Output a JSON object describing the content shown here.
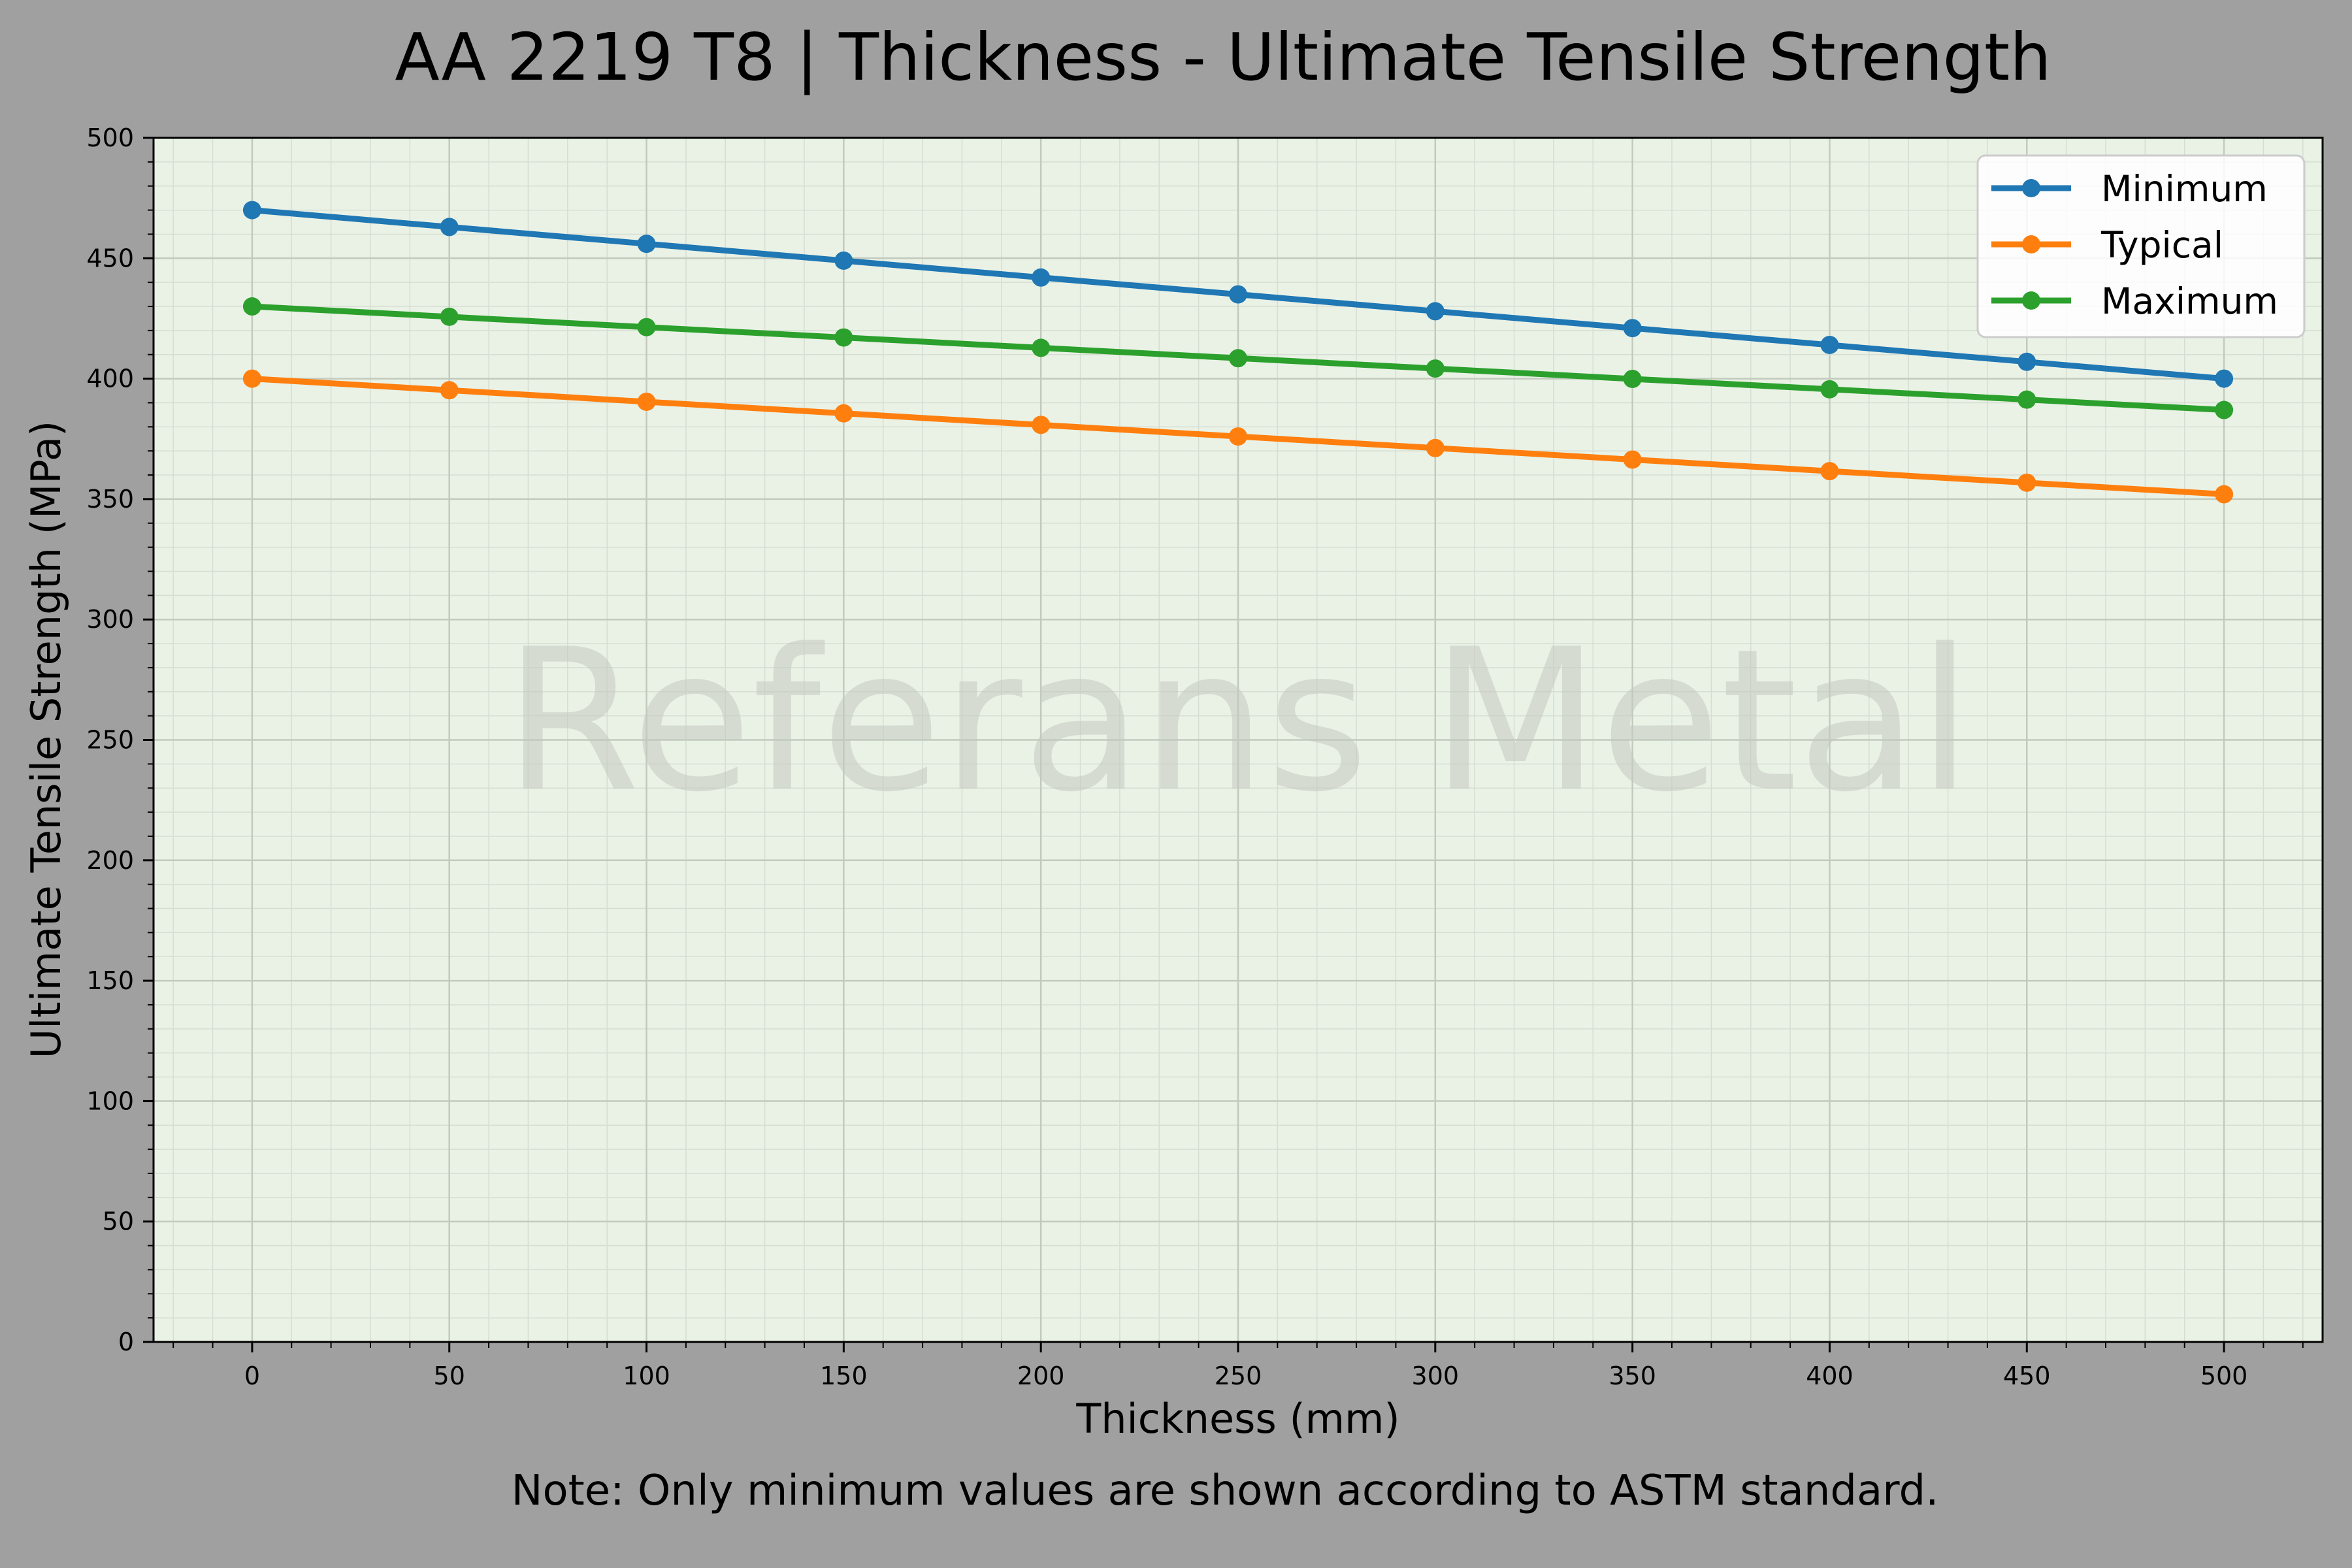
{
  "chart_data": {
    "type": "line",
    "title": "AA 2219 T8 | Thickness - Ultimate Tensile Strength",
    "xlabel": "Thickness (mm)",
    "ylabel": "Ultimate Tensile Strength (MPa)",
    "note": "Note: Only minimum values are shown according to ASTM standard.",
    "watermark": "Referans Metal",
    "xlim": [
      -25,
      525
    ],
    "ylim": [
      0,
      500
    ],
    "xticks": [
      0,
      50,
      100,
      150,
      200,
      250,
      300,
      350,
      400,
      450,
      500
    ],
    "yticks": [
      0,
      50,
      100,
      150,
      200,
      250,
      300,
      350,
      400,
      450,
      500
    ],
    "grid": true,
    "legend_position": "top-right",
    "x": [
      0,
      50,
      100,
      150,
      200,
      250,
      300,
      350,
      400,
      450,
      500
    ],
    "series": [
      {
        "name": "Minimum",
        "color": "#1f77b4",
        "values": [
          470,
          463,
          456,
          449,
          442,
          435,
          428,
          421,
          414,
          407,
          400
        ]
      },
      {
        "name": "Typical",
        "color": "#ff7f0e",
        "values": [
          400,
          395.2,
          390.4,
          385.6,
          380.8,
          376,
          371.2,
          366.4,
          361.6,
          356.8,
          352
        ]
      },
      {
        "name": "Maximum",
        "color": "#2ca02c",
        "values": [
          430,
          425.7,
          421.4,
          417.1,
          412.8,
          408.5,
          404.2,
          399.9,
          395.6,
          391.3,
          387
        ]
      }
    ],
    "colors": {
      "page_background": "#a0a0a0",
      "plot_background": "#eaf2e6"
    }
  }
}
